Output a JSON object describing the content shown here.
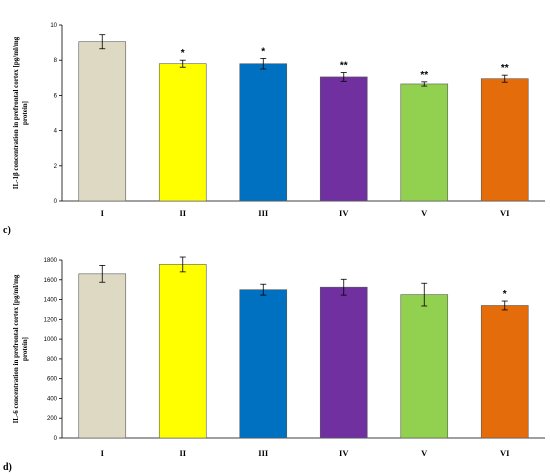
{
  "chart_data": [
    {
      "type": "bar",
      "panel_label": "",
      "ylabel": "IL-1β concentration in prefrontal cortex [pg/ml/mg protein]",
      "ylabel_lines": [
        "IL-1β concentration in prefrontal cortex [pg/ml/mg",
        "protein]"
      ],
      "categories": [
        "I",
        "II",
        "III",
        "IV",
        "V",
        "VI"
      ],
      "values": [
        9.05,
        7.8,
        7.8,
        7.05,
        6.65,
        6.95
      ],
      "errors": [
        0.4,
        0.2,
        0.3,
        0.25,
        0.12,
        0.2
      ],
      "significance": [
        "",
        "*",
        "*",
        "**",
        "**",
        "**"
      ],
      "colors": [
        "#ddd9c3",
        "#ffff00",
        "#0070c0",
        "#7030a0",
        "#92d050",
        "#e46c0a"
      ],
      "ylim": [
        0,
        10
      ],
      "yticks": [
        0,
        2,
        4,
        6,
        8,
        10
      ]
    },
    {
      "type": "bar",
      "panel_label": "d)",
      "ylabel": "IL-6 concentration in prefrontal cortex [pg/ml/mg protein]",
      "ylabel_lines": [
        "IL-6 concentration in prefrontal cortex [pg/ml/mg",
        "protein]"
      ],
      "categories": [
        "I",
        "II",
        "III",
        "IV",
        "V",
        "VI"
      ],
      "values": [
        1660,
        1755,
        1500,
        1525,
        1450,
        1340
      ],
      "errors": [
        85,
        75,
        55,
        80,
        115,
        45
      ],
      "significance": [
        "",
        "",
        "",
        "",
        "",
        "*"
      ],
      "colors": [
        "#ddd9c3",
        "#ffff00",
        "#0070c0",
        "#7030a0",
        "#92d050",
        "#e46c0a"
      ],
      "ylim": [
        0,
        1800
      ],
      "yticks": [
        0,
        200,
        400,
        600,
        800,
        1000,
        1200,
        1400,
        1600,
        1800
      ]
    }
  ],
  "between_label": "c)"
}
